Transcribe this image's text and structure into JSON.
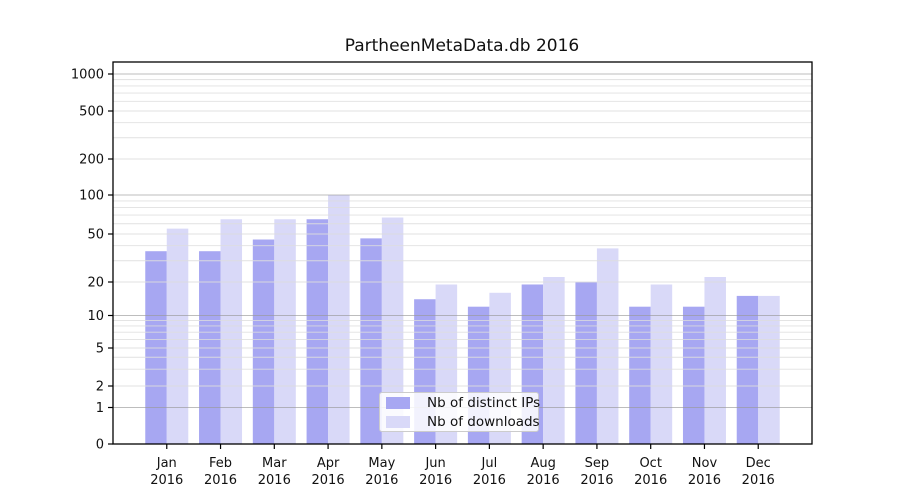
{
  "title": "PartheenMetaData.db 2016",
  "chart_data": {
    "type": "bar",
    "title": "PartheenMetaData.db 2016",
    "year_label": "2016",
    "categories": [
      "Jan",
      "Feb",
      "Mar",
      "Apr",
      "May",
      "Jun",
      "Jul",
      "Aug",
      "Sep",
      "Oct",
      "Nov",
      "Dec"
    ],
    "series": [
      {
        "name": "Nb of distinct IPs",
        "color": "#a7a7f2",
        "values": [
          36,
          36,
          45,
          65,
          46,
          14,
          12,
          19,
          20,
          12,
          12,
          15
        ]
      },
      {
        "name": "Nb of downloads",
        "color": "#d9d9f8",
        "values": [
          55,
          65,
          65,
          100,
          67,
          19,
          16,
          22,
          38,
          19,
          22,
          15
        ]
      }
    ],
    "yscale": "symlog",
    "yticks": [
      "0",
      "1",
      "2",
      "5",
      "10",
      "20",
      "50",
      "100",
      "200",
      "500",
      "1000"
    ],
    "ylim": [
      0,
      1200
    ],
    "grid": true,
    "legend_position": "lower center",
    "colors": {
      "major_grid": "#9a9a9a",
      "minor_grid": "#dddddd",
      "axis": "#000000",
      "text": "#111111"
    }
  }
}
